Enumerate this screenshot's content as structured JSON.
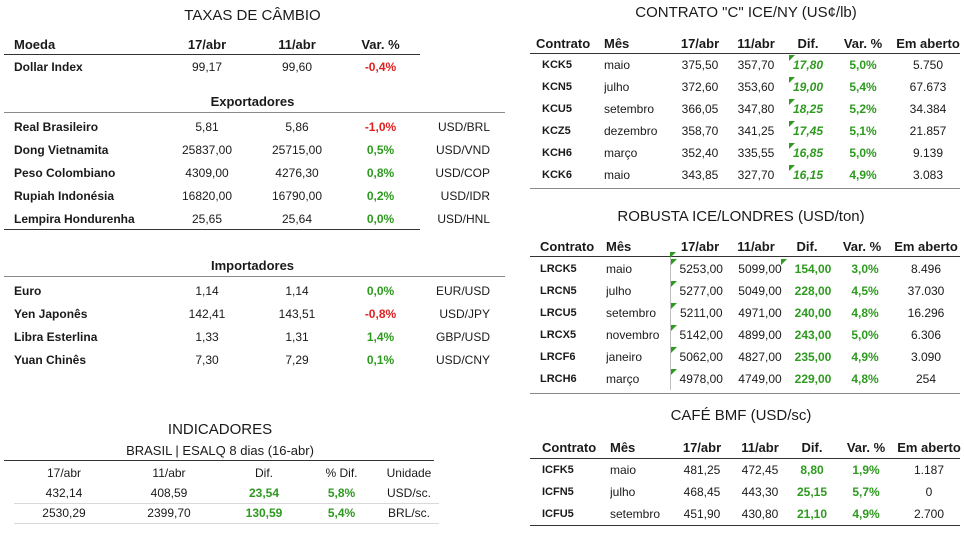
{
  "taxas": {
    "title": "TAXAS DE CÂMBIO",
    "headers": [
      "Moeda",
      "17/abr",
      "11/abr",
      "Var. %"
    ],
    "dollar": {
      "name": "Dollar Index",
      "v1": "99,17",
      "v2": "99,60",
      "var": "-0,4%"
    },
    "export_title": "Exportadores",
    "exportadores": [
      {
        "name": "Real Brasileiro",
        "v1": "5,81",
        "v2": "5,86",
        "var": "-1,0%",
        "unit": "USD/BRL",
        "neg": true
      },
      {
        "name": "Dong Vietnamita",
        "v1": "25837,00",
        "v2": "25715,00",
        "var": "0,5%",
        "unit": "USD/VND",
        "neg": false
      },
      {
        "name": "Peso Colombiano",
        "v1": "4309,00",
        "v2": "4276,30",
        "var": "0,8%",
        "unit": "USD/COP",
        "neg": false
      },
      {
        "name": "Rupiah Indonésia",
        "v1": "16820,00",
        "v2": "16790,00",
        "var": "0,2%",
        "unit": "USD/IDR",
        "neg": false
      },
      {
        "name": "Lempira Hondurenha",
        "v1": "25,65",
        "v2": "25,64",
        "var": "0,0%",
        "unit": "USD/HNL",
        "neg": false
      }
    ],
    "import_title": "Importadores",
    "importadores": [
      {
        "name": "Euro",
        "v1": "1,14",
        "v2": "1,14",
        "var": "0,0%",
        "unit": "EUR/USD",
        "neg": false
      },
      {
        "name": "Yen Japonês",
        "v1": "142,41",
        "v2": "143,51",
        "var": "-0,8%",
        "unit": "USD/JPY",
        "neg": true
      },
      {
        "name": "Libra Esterlina",
        "v1": "1,33",
        "v2": "1,31",
        "var": "1,4%",
        "unit": "GBP/USD",
        "neg": false
      },
      {
        "name": "Yuan Chinês",
        "v1": "7,30",
        "v2": "7,29",
        "var": "0,1%",
        "unit": "USD/CNY",
        "neg": false
      }
    ]
  },
  "indicadores": {
    "title": "INDICADORES",
    "subtitle": "BRASIL | ESALQ 8 dias (16-abr)",
    "headers": [
      "17/abr",
      "11/abr",
      "Dif.",
      "% Dif.",
      "Unidade"
    ],
    "rows": [
      {
        "v1": "432,14",
        "v2": "408,59",
        "dif": "23,54",
        "pct": "5,8%",
        "unit": "USD/sc."
      },
      {
        "v1": "2530,29",
        "v2": "2399,70",
        "dif": "130,59",
        "pct": "5,4%",
        "unit": "BRL/sc."
      }
    ]
  },
  "contrato_c": {
    "title": "CONTRATO \"C\" ICE/NY (US¢/lb)",
    "headers": [
      "Contrato",
      "Mês",
      "17/abr",
      "11/abr",
      "Dif.",
      "Var. %",
      "Em aberto"
    ],
    "rows": [
      {
        "c": "KCK5",
        "m": "maio",
        "v1": "375,50",
        "v2": "357,70",
        "dif": "17,80",
        "var": "5,0%",
        "oi": "5.750"
      },
      {
        "c": "KCN5",
        "m": "julho",
        "v1": "372,60",
        "v2": "353,60",
        "dif": "19,00",
        "var": "5,4%",
        "oi": "67.673"
      },
      {
        "c": "KCU5",
        "m": "setembro",
        "v1": "366,05",
        "v2": "347,80",
        "dif": "18,25",
        "var": "5,2%",
        "oi": "34.384"
      },
      {
        "c": "KCZ5",
        "m": "dezembro",
        "v1": "358,70",
        "v2": "341,25",
        "dif": "17,45",
        "var": "5,1%",
        "oi": "21.857"
      },
      {
        "c": "KCH6",
        "m": "março",
        "v1": "352,40",
        "v2": "335,55",
        "dif": "16,85",
        "var": "5,0%",
        "oi": "9.139"
      },
      {
        "c": "KCK6",
        "m": "maio",
        "v1": "343,85",
        "v2": "327,70",
        "dif": "16,15",
        "var": "4,9%",
        "oi": "3.083"
      }
    ]
  },
  "robusta": {
    "title": "ROBUSTA ICE/LONDRES (USD/ton)",
    "headers": [
      "Contrato",
      "Mês",
      "17/abr",
      "11/abr",
      "Dif.",
      "Var. %",
      "Em aberto"
    ],
    "rows": [
      {
        "c": "LRCK5",
        "m": "maio",
        "v1": "5253,00",
        "v2": "5099,00",
        "dif": "154,00",
        "var": "3,0%",
        "oi": "8.496"
      },
      {
        "c": "LRCN5",
        "m": "julho",
        "v1": "5277,00",
        "v2": "5049,00",
        "dif": "228,00",
        "var": "4,5%",
        "oi": "37.030"
      },
      {
        "c": "LRCU5",
        "m": "setembro",
        "v1": "5211,00",
        "v2": "4971,00",
        "dif": "240,00",
        "var": "4,8%",
        "oi": "16.296"
      },
      {
        "c": "LRCX5",
        "m": "novembro",
        "v1": "5142,00",
        "v2": "4899,00",
        "dif": "243,00",
        "var": "5,0%",
        "oi": "6.306"
      },
      {
        "c": "LRCF6",
        "m": "janeiro",
        "v1": "5062,00",
        "v2": "4827,00",
        "dif": "235,00",
        "var": "4,9%",
        "oi": "3.090"
      },
      {
        "c": "LRCH6",
        "m": "março",
        "v1": "4978,00",
        "v2": "4749,00",
        "dif": "229,00",
        "var": "4,8%",
        "oi": "254"
      }
    ]
  },
  "cafe_bmf": {
    "title": "CAFÉ BMF (USD/sc)",
    "headers": [
      "Contrato",
      "Mês",
      "17/abr",
      "11/abr",
      "Dif.",
      "Var. %",
      "Em aberto"
    ],
    "rows": [
      {
        "c": "ICFK5",
        "m": "maio",
        "v1": "481,25",
        "v2": "472,45",
        "dif": "8,80",
        "var": "1,9%",
        "oi": "1.187"
      },
      {
        "c": "ICFN5",
        "m": "julho",
        "v1": "468,45",
        "v2": "443,30",
        "dif": "25,15",
        "var": "5,7%",
        "oi": "0"
      },
      {
        "c": "ICFU5",
        "m": "setembro",
        "v1": "451,90",
        "v2": "430,80",
        "dif": "21,10",
        "var": "4,9%",
        "oi": "2.700"
      }
    ]
  },
  "colors": {
    "positive": "#2e9a1f",
    "negative": "#e02020"
  }
}
